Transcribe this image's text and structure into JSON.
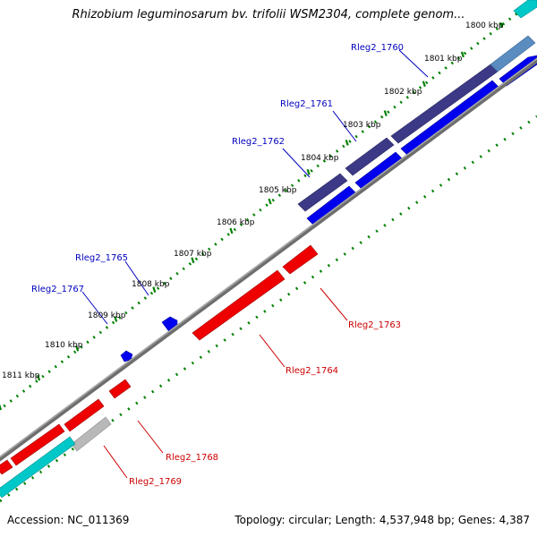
{
  "title": "Rhizobium leguminosarum bv. trifolii WSM2304, complete genom...",
  "accession": "Accession: NC_011369",
  "summary": "Topology: circular; Length: 4,537,948 bp; Genes: 4,387",
  "colors": {
    "forward_gene": "#0000ee",
    "forward_dark": "#3c3a86",
    "reverse_gene": "#ee0000",
    "cds_highlight": "#00c8c8",
    "pseudogene": "#b8b8b8",
    "backbone": "#808080",
    "tick": "#008000",
    "forward_label": "#0000c0",
    "reverse_label": "#cc0000"
  },
  "scale_labels": [
    "1800 kbp",
    "1801 kbp",
    "1802 kbp",
    "1803 kbp",
    "1804 kbp",
    "1805 kbp",
    "1806 kbp",
    "1807 kbp",
    "1808 kbp",
    "1809 kbp",
    "1810 kbp",
    "1811 kbp"
  ],
  "gene_labels_forward": [
    "Rleg2_1760",
    "Rleg2_1761",
    "Rleg2_1762",
    "Rleg2_1765",
    "Rleg2_1767"
  ],
  "gene_labels_reverse": [
    "Rleg2_1763",
    "Rleg2_1764",
    "Rleg2_1768",
    "Rleg2_1769"
  ]
}
